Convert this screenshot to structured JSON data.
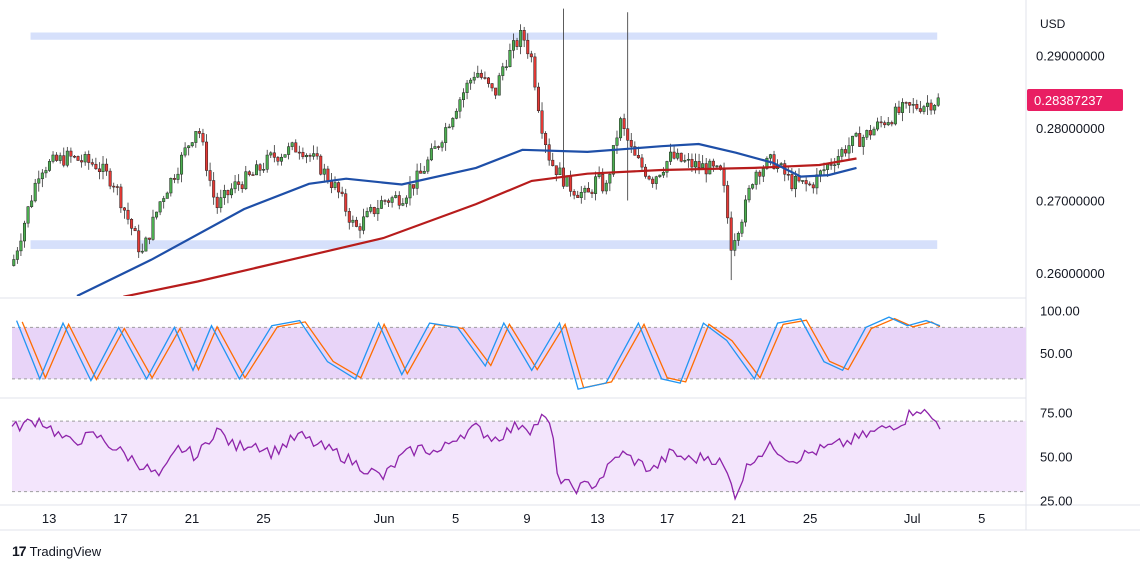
{
  "chart_data": {
    "type": "candlestick",
    "price": {
      "currency_label": "USD",
      "ylim": [
        0.2568,
        0.297
      ],
      "yticks": [
        {
          "value": 0.29,
          "label": "0.29000000"
        },
        {
          "value": 0.28,
          "label": "0.28000000"
        },
        {
          "value": 0.27,
          "label": "0.27000000"
        },
        {
          "value": 0.26,
          "label": "0.26000000"
        }
      ],
      "last_price": 0.28387237,
      "last_price_label": "0.28387237",
      "last_price_color": "#e91e63",
      "bull_color": "#4caf50",
      "bear_color": "#e53935",
      "zones": [
        {
          "low": 0.2922,
          "high": 0.2932
        },
        {
          "low": 0.2633,
          "high": 0.2645
        }
      ],
      "zone_color": "#d6e0fb",
      "ma_long": {
        "color": "#b71c1c",
        "points": [
          [
            0.27,
            0.252
          ],
          [
            0.12,
            0.2567
          ],
          [
            0.2,
            0.2588
          ],
          [
            0.3,
            0.2618
          ],
          [
            0.4,
            0.2648
          ],
          [
            0.5,
            0.2695
          ],
          [
            0.56,
            0.2727
          ],
          [
            0.62,
            0.2737
          ],
          [
            0.7,
            0.2742
          ],
          [
            0.8,
            0.2745
          ],
          [
            0.87,
            0.2749
          ],
          [
            0.91,
            0.2758
          ]
        ]
      },
      "ma_short": {
        "color": "#1e4fa8",
        "points": [
          [
            0.07,
            0.2568
          ],
          [
            0.15,
            0.2618
          ],
          [
            0.25,
            0.2688
          ],
          [
            0.32,
            0.2723
          ],
          [
            0.36,
            0.273
          ],
          [
            0.42,
            0.2722
          ],
          [
            0.5,
            0.2745
          ],
          [
            0.55,
            0.277
          ],
          [
            0.62,
            0.2767
          ],
          [
            0.7,
            0.2775
          ],
          [
            0.74,
            0.2778
          ],
          [
            0.78,
            0.2766
          ],
          [
            0.82,
            0.2752
          ],
          [
            0.85,
            0.2733
          ],
          [
            0.88,
            0.2735
          ],
          [
            0.91,
            0.2745
          ]
        ]
      },
      "path": [
        [
          0.0,
          0.261
        ],
        [
          0.03,
          0.2745
        ],
        [
          0.06,
          0.276
        ],
        [
          0.09,
          0.275
        ],
        [
          0.11,
          0.2725
        ],
        [
          0.14,
          0.2625
        ],
        [
          0.16,
          0.27
        ],
        [
          0.18,
          0.275
        ],
        [
          0.2,
          0.2805
        ],
        [
          0.22,
          0.269
        ],
        [
          0.24,
          0.272
        ],
        [
          0.26,
          0.2735
        ],
        [
          0.28,
          0.276
        ],
        [
          0.31,
          0.2775
        ],
        [
          0.33,
          0.275
        ],
        [
          0.35,
          0.2715
        ],
        [
          0.37,
          0.266
        ],
        [
          0.4,
          0.27
        ],
        [
          0.42,
          0.2705
        ],
        [
          0.44,
          0.2735
        ],
        [
          0.46,
          0.278
        ],
        [
          0.48,
          0.2835
        ],
        [
          0.5,
          0.288
        ],
        [
          0.52,
          0.2845
        ],
        [
          0.53,
          0.289
        ],
        [
          0.55,
          0.293
        ],
        [
          0.56,
          0.2895
        ],
        [
          0.57,
          0.281
        ],
        [
          0.58,
          0.2755
        ],
        [
          0.6,
          0.272
        ],
        [
          0.62,
          0.2705
        ],
        [
          0.63,
          0.273
        ],
        [
          0.64,
          0.2715
        ],
        [
          0.655,
          0.281
        ],
        [
          0.67,
          0.276
        ],
        [
          0.69,
          0.273
        ],
        [
          0.71,
          0.276
        ],
        [
          0.73,
          0.275
        ],
        [
          0.75,
          0.2745
        ],
        [
          0.765,
          0.2735
        ],
        [
          0.775,
          0.264
        ],
        [
          0.79,
          0.269
        ],
        [
          0.8,
          0.274
        ],
        [
          0.82,
          0.2755
        ],
        [
          0.84,
          0.2725
        ],
        [
          0.86,
          0.272
        ],
        [
          0.88,
          0.275
        ],
        [
          0.9,
          0.2775
        ],
        [
          0.92,
          0.279
        ],
        [
          0.94,
          0.281
        ],
        [
          0.96,
          0.2825
        ],
        [
          1.0,
          0.2839
        ]
      ],
      "spikes": [
        {
          "pos": 0.662,
          "high": 0.296,
          "low": 0.27
        },
        {
          "pos": 0.595,
          "high": 0.2965,
          "low": 0.29
        },
        {
          "pos": 0.776,
          "high": 0.2675,
          "low": 0.259
        }
      ]
    },
    "stochastic": {
      "ylim": [
        0,
        112
      ],
      "yticks": [
        {
          "value": 100,
          "label": "100.00"
        },
        {
          "value": 50,
          "label": "50.00"
        }
      ],
      "bands": [
        20,
        80
      ],
      "fill_color": "#e8d4f8",
      "k_color": "#2196f3",
      "d_color": "#ff6d00",
      "cycles": [
        {
          "center": 0.005,
          "value": 88
        },
        {
          "center": 0.03,
          "value": 20
        },
        {
          "center": 0.055,
          "value": 85
        },
        {
          "center": 0.085,
          "value": 18
        },
        {
          "center": 0.115,
          "value": 80
        },
        {
          "center": 0.145,
          "value": 20
        },
        {
          "center": 0.175,
          "value": 80
        },
        {
          "center": 0.195,
          "value": 30
        },
        {
          "center": 0.215,
          "value": 82
        },
        {
          "center": 0.245,
          "value": 20
        },
        {
          "center": 0.28,
          "value": 82
        },
        {
          "center": 0.31,
          "value": 88
        },
        {
          "center": 0.34,
          "value": 40
        },
        {
          "center": 0.37,
          "value": 20
        },
        {
          "center": 0.395,
          "value": 85
        },
        {
          "center": 0.42,
          "value": 25
        },
        {
          "center": 0.45,
          "value": 85
        },
        {
          "center": 0.48,
          "value": 80
        },
        {
          "center": 0.51,
          "value": 35
        },
        {
          "center": 0.53,
          "value": 85
        },
        {
          "center": 0.56,
          "value": 30
        },
        {
          "center": 0.59,
          "value": 85
        },
        {
          "center": 0.61,
          "value": 8
        },
        {
          "center": 0.64,
          "value": 15
        },
        {
          "center": 0.675,
          "value": 85
        },
        {
          "center": 0.7,
          "value": 20
        },
        {
          "center": 0.72,
          "value": 15
        },
        {
          "center": 0.745,
          "value": 85
        },
        {
          "center": 0.77,
          "value": 65
        },
        {
          "center": 0.8,
          "value": 20
        },
        {
          "center": 0.825,
          "value": 85
        },
        {
          "center": 0.85,
          "value": 90
        },
        {
          "center": 0.875,
          "value": 40
        },
        {
          "center": 0.895,
          "value": 30
        },
        {
          "center": 0.92,
          "value": 80
        },
        {
          "center": 0.945,
          "value": 92
        },
        {
          "center": 0.965,
          "value": 82
        },
        {
          "center": 0.985,
          "value": 88
        },
        {
          "center": 1.0,
          "value": 82
        }
      ]
    },
    "rsi": {
      "ylim": [
        23,
        82
      ],
      "yticks": [
        {
          "value": 75,
          "label": "75.00"
        },
        {
          "value": 50,
          "label": "50.00"
        },
        {
          "value": 25,
          "label": "25.00"
        }
      ],
      "bands": [
        30,
        70
      ],
      "fill_color": "#f3e5fc",
      "line_color": "#8e24aa",
      "path": [
        [
          0.0,
          66
        ],
        [
          0.03,
          71
        ],
        [
          0.06,
          58
        ],
        [
          0.09,
          62
        ],
        [
          0.11,
          55
        ],
        [
          0.14,
          45
        ],
        [
          0.16,
          38
        ],
        [
          0.18,
          55
        ],
        [
          0.2,
          50
        ],
        [
          0.22,
          66
        ],
        [
          0.24,
          55
        ],
        [
          0.26,
          58
        ],
        [
          0.28,
          52
        ],
        [
          0.31,
          62
        ],
        [
          0.33,
          56
        ],
        [
          0.35,
          52
        ],
        [
          0.37,
          46
        ],
        [
          0.4,
          38
        ],
        [
          0.42,
          50
        ],
        [
          0.44,
          55
        ],
        [
          0.46,
          52
        ],
        [
          0.48,
          62
        ],
        [
          0.5,
          66
        ],
        [
          0.52,
          60
        ],
        [
          0.53,
          63
        ],
        [
          0.55,
          69
        ],
        [
          0.56,
          65
        ],
        [
          0.57,
          72
        ],
        [
          0.58,
          68
        ],
        [
          0.59,
          35
        ],
        [
          0.61,
          32
        ],
        [
          0.63,
          35
        ],
        [
          0.655,
          52
        ],
        [
          0.67,
          48
        ],
        [
          0.69,
          42
        ],
        [
          0.71,
          52
        ],
        [
          0.73,
          48
        ],
        [
          0.75,
          50
        ],
        [
          0.765,
          46
        ],
        [
          0.78,
          28
        ],
        [
          0.79,
          42
        ],
        [
          0.8,
          50
        ],
        [
          0.82,
          56
        ],
        [
          0.84,
          48
        ],
        [
          0.86,
          52
        ],
        [
          0.88,
          55
        ],
        [
          0.9,
          58
        ],
        [
          0.92,
          62
        ],
        [
          0.94,
          66
        ],
        [
          0.96,
          70
        ],
        [
          0.975,
          78
        ],
        [
          0.985,
          74
        ],
        [
          1.0,
          68
        ]
      ]
    },
    "x_axis": {
      "labels": [
        {
          "text": "13",
          "pos": 0.04
        },
        {
          "text": "17",
          "pos": 0.117
        },
        {
          "text": "21",
          "pos": 0.194
        },
        {
          "text": "25",
          "pos": 0.271
        },
        {
          "text": "Jun",
          "pos": 0.401
        },
        {
          "text": "5",
          "pos": 0.478
        },
        {
          "text": "9",
          "pos": 0.555
        },
        {
          "text": "13",
          "pos": 0.631
        },
        {
          "text": "17",
          "pos": 0.706
        },
        {
          "text": "21",
          "pos": 0.783
        },
        {
          "text": "25",
          "pos": 0.86
        },
        {
          "text": "Jul",
          "pos": 0.97
        },
        {
          "text": "5",
          "pos": 1.045
        }
      ]
    }
  },
  "brand": {
    "logo": "17",
    "name": "TradingView"
  }
}
